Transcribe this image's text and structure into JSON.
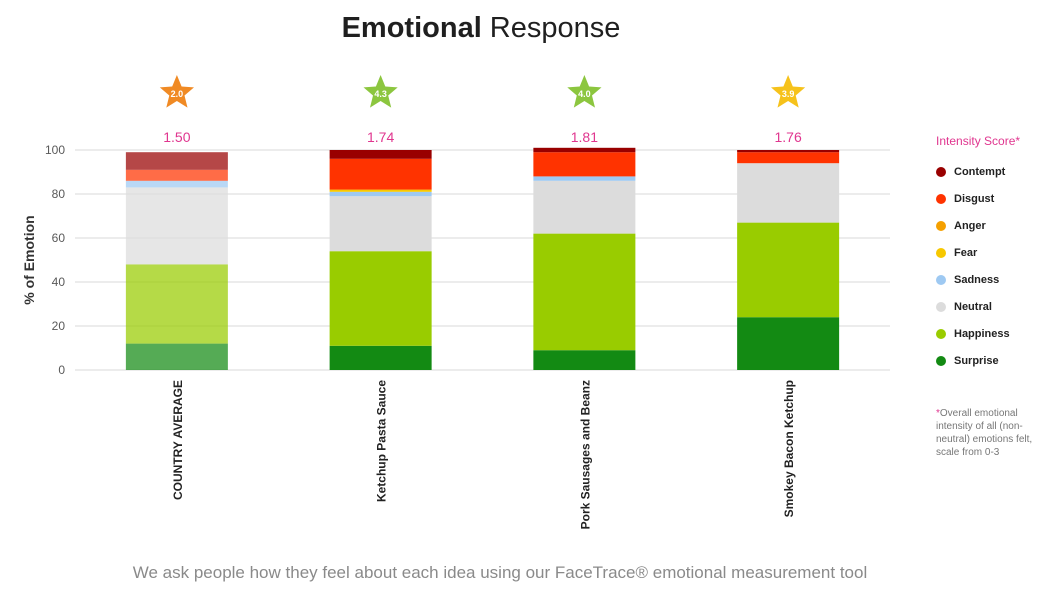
{
  "title": {
    "bold": "Emotional",
    "rest": " Response"
  },
  "chart_data": {
    "type": "bar",
    "stacked": true,
    "categories": [
      "COUNTRY  AVERAGE",
      "Ketchup Pasta Sauce",
      "Pork Sausages and Beanz",
      "Smokey Bacon Ketchup"
    ],
    "ylabel": "% of Emotion",
    "ylim": [
      0,
      100
    ],
    "yticks": [
      0,
      20,
      40,
      60,
      80,
      100
    ],
    "grid": true,
    "legend_position": "right",
    "legend_title": "Intensity Score*",
    "intensity_scores": [
      "1.50",
      "1.74",
      "1.81",
      "1.76"
    ],
    "star_ratings": [
      "2.0",
      "4.3",
      "4.0",
      "3.9"
    ],
    "star_colors": [
      "#f08a24",
      "#8cc63f",
      "#8cc63f",
      "#f6c21b"
    ],
    "series": [
      {
        "name": "Surprise",
        "color": "#138a13",
        "values": [
          12,
          11,
          9,
          24
        ]
      },
      {
        "name": "Happiness",
        "color": "#99cc00",
        "values": [
          36,
          43,
          53,
          43
        ]
      },
      {
        "name": "Neutral",
        "color": "#dcdcdc",
        "values": [
          35,
          25,
          24,
          27
        ]
      },
      {
        "name": "Sadness",
        "color": "#9ec9f2",
        "values": [
          3,
          2,
          2,
          0
        ]
      },
      {
        "name": "Fear",
        "color": "#f7c800",
        "values": [
          0,
          1,
          0,
          0
        ]
      },
      {
        "name": "Anger",
        "color": "#f5a000",
        "values": [
          0,
          0,
          0,
          0
        ]
      },
      {
        "name": "Disgust",
        "color": "#ff3300",
        "values": [
          5,
          14,
          11,
          5
        ]
      },
      {
        "name": "Contempt",
        "color": "#990000",
        "values": [
          8,
          4,
          2,
          1
        ]
      }
    ],
    "faded_bar_index": 0
  },
  "legend_order": [
    "Contempt",
    "Disgust",
    "Anger",
    "Fear",
    "Sadness",
    "Neutral",
    "Happiness",
    "Surprise"
  ],
  "footnote": {
    "asterisk": "*",
    "text": "Overall emotional intensity of all (non-neutral) emotions felt, scale from 0-3"
  },
  "footer": "We ask people how they feel about each idea using our FaceTrace® emotional measurement tool"
}
